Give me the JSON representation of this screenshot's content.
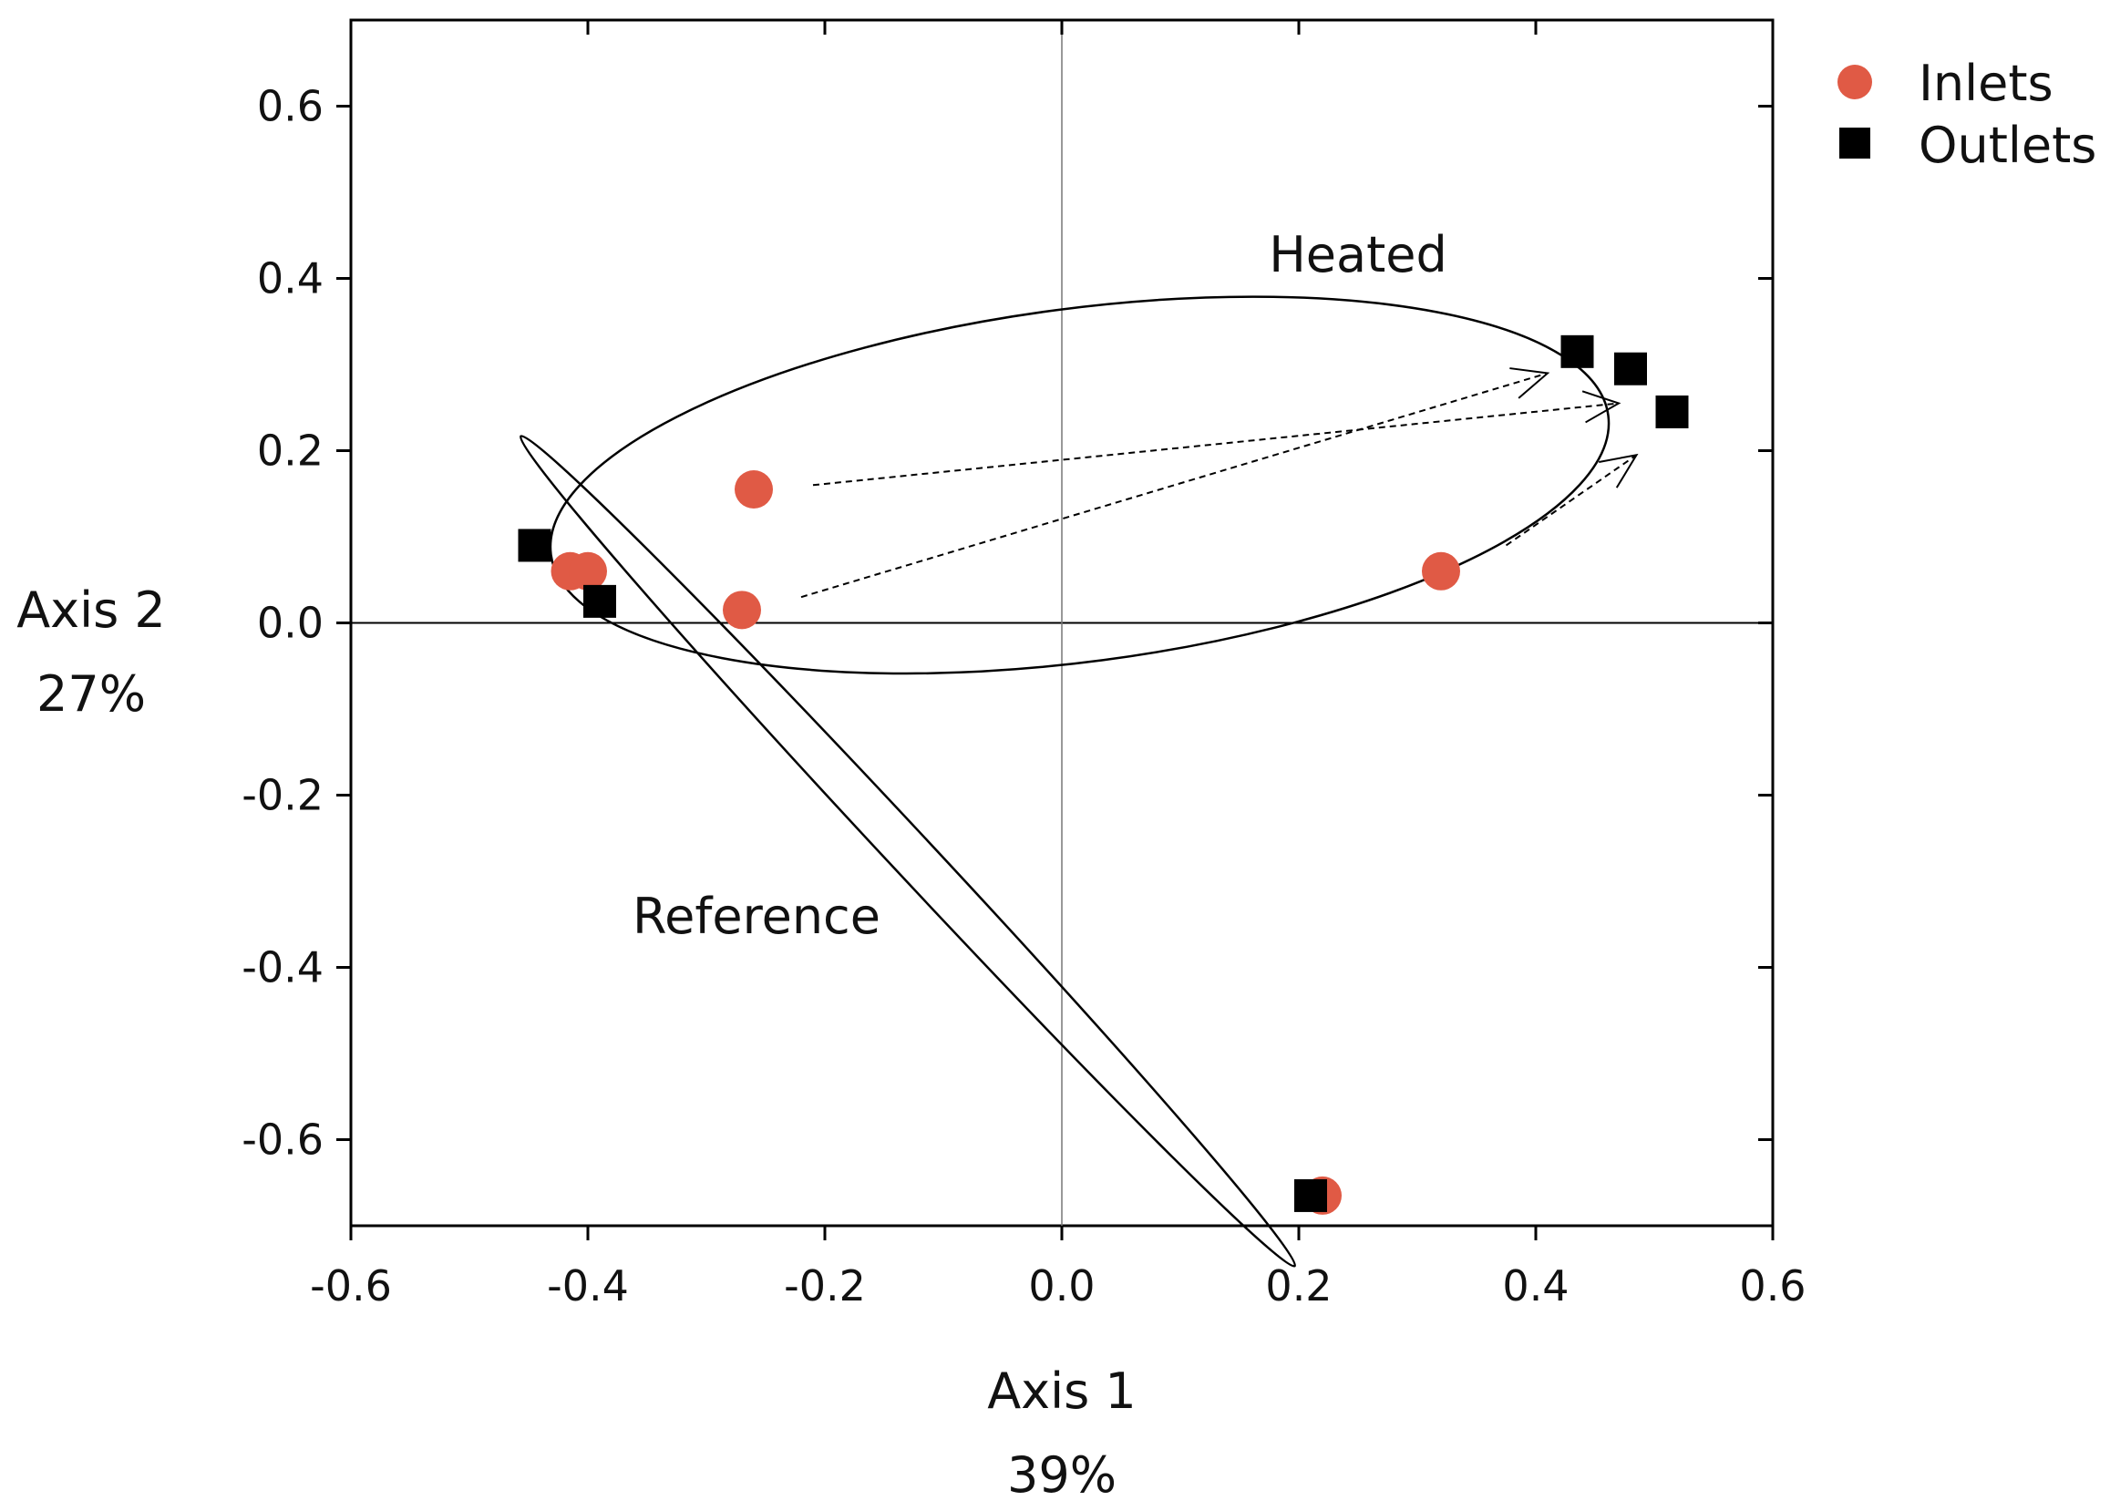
{
  "chart_data": {
    "type": "scatter",
    "title": "",
    "xlabel": "Axis 1",
    "xlabel_pct": "39%",
    "ylabel": "Axis 2",
    "ylabel_pct": "27%",
    "xlim": [
      -0.6,
      0.6
    ],
    "ylim": [
      -0.7,
      0.7
    ],
    "x_ticks": [
      -0.6,
      -0.4,
      -0.2,
      0.0,
      0.2,
      0.4,
      0.6
    ],
    "x_tick_labels": [
      "-0.6",
      "-0.4",
      "-0.2",
      "0.0",
      "0.2",
      "0.4",
      "0.6"
    ],
    "y_ticks": [
      -0.6,
      -0.4,
      -0.2,
      0.0,
      0.2,
      0.4,
      0.6
    ],
    "y_tick_labels": [
      "-0.6",
      "-0.4",
      "-0.2",
      "0.0",
      "0.2",
      "0.4",
      "0.6"
    ],
    "legend_position": "top-right",
    "series": [
      {
        "name": "Inlets",
        "marker": "circle",
        "color": "#e05a45",
        "points": [
          {
            "x": -0.26,
            "y": 0.155
          },
          {
            "x": -0.27,
            "y": 0.015
          },
          {
            "x": 0.32,
            "y": 0.06
          },
          {
            "x": -0.415,
            "y": 0.06
          },
          {
            "x": -0.4,
            "y": 0.06
          },
          {
            "x": 0.22,
            "y": -0.665
          }
        ]
      },
      {
        "name": "Outlets",
        "marker": "square",
        "color": "#000000",
        "points": [
          {
            "x": 0.435,
            "y": 0.315
          },
          {
            "x": 0.48,
            "y": 0.295
          },
          {
            "x": 0.515,
            "y": 0.245
          },
          {
            "x": -0.445,
            "y": 0.09
          },
          {
            "x": -0.39,
            "y": 0.025
          },
          {
            "x": 0.21,
            "y": -0.665
          }
        ]
      }
    ],
    "groups": [
      {
        "label": "Heated",
        "center": [
          0.015,
          0.16
        ],
        "rx": 0.45,
        "ry": 0.205,
        "rotation_deg": -0.0
      },
      {
        "label": "Reference",
        "center": [
          -0.13,
          -0.265
        ],
        "rx": 0.57,
        "ry": 0.025,
        "rotation_deg": 47
      }
    ],
    "arrows": [
      {
        "from": [
          -0.21,
          0.16
        ],
        "to": [
          0.47,
          0.255
        ]
      },
      {
        "from": [
          -0.22,
          0.03
        ],
        "to": [
          0.41,
          0.29
        ]
      },
      {
        "from": [
          0.375,
          0.09
        ],
        "to": [
          0.485,
          0.195
        ]
      }
    ]
  }
}
